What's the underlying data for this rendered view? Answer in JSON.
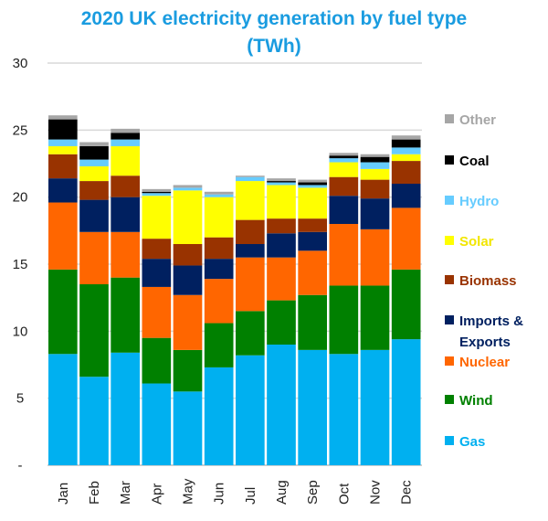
{
  "chart_data": {
    "type": "bar",
    "stacked": true,
    "title": "2020 UK electricity generation by fuel type",
    "title_line2": "(TWh)",
    "categories": [
      "Jan",
      "Feb",
      "Mar",
      "Apr",
      "May",
      "Jun",
      "Jul",
      "Aug",
      "Sep",
      "Oct",
      "Nov",
      "Dec"
    ],
    "ylim": [
      0,
      30
    ],
    "yticks": [
      "-",
      "5",
      "10",
      "15",
      "20",
      "25",
      "30"
    ],
    "grid": true,
    "legend_position": "right",
    "series": [
      {
        "name": "Gas",
        "color": "#00b0f0",
        "values": [
          8.3,
          6.6,
          8.4,
          6.1,
          5.5,
          7.3,
          8.2,
          9.0,
          8.6,
          8.3,
          8.6,
          9.4
        ]
      },
      {
        "name": "Wind",
        "color": "#008000",
        "values": [
          6.3,
          6.9,
          5.6,
          3.4,
          3.1,
          3.3,
          3.3,
          3.3,
          4.1,
          5.1,
          4.8,
          5.2
        ]
      },
      {
        "name": "Nuclear",
        "color": "#ff6600",
        "values": [
          5.0,
          3.9,
          3.4,
          3.8,
          4.1,
          3.3,
          4.0,
          3.2,
          3.3,
          4.6,
          4.2,
          4.6
        ]
      },
      {
        "name": "Imports & Exports",
        "color": "#002060",
        "values": [
          1.8,
          2.4,
          2.6,
          2.1,
          2.2,
          1.5,
          1.0,
          1.8,
          1.4,
          2.1,
          2.3,
          1.8
        ]
      },
      {
        "name": "Biomass",
        "color": "#993300",
        "values": [
          1.8,
          1.4,
          1.6,
          1.5,
          1.6,
          1.6,
          1.8,
          1.1,
          1.0,
          1.4,
          1.4,
          1.7
        ]
      },
      {
        "name": "Solar",
        "color": "#ffff00",
        "values": [
          0.6,
          1.1,
          2.2,
          3.2,
          4.0,
          3.0,
          2.9,
          2.5,
          2.3,
          1.1,
          0.8,
          0.5
        ]
      },
      {
        "name": "Hydro",
        "color": "#66ccff",
        "values": [
          0.5,
          0.5,
          0.5,
          0.2,
          0.2,
          0.2,
          0.3,
          0.2,
          0.2,
          0.3,
          0.5,
          0.5
        ]
      },
      {
        "name": "Coal",
        "color": "#000000",
        "values": [
          1.5,
          1.0,
          0.5,
          0.1,
          0.0,
          0.0,
          0.0,
          0.1,
          0.2,
          0.2,
          0.4,
          0.6
        ]
      },
      {
        "name": "Other",
        "color": "#a6a6a6",
        "values": [
          0.3,
          0.3,
          0.3,
          0.2,
          0.2,
          0.2,
          0.1,
          0.2,
          0.2,
          0.2,
          0.2,
          0.3
        ]
      }
    ],
    "legend_order": [
      "Other",
      "Coal",
      "Hydro",
      "Solar",
      "Biomass",
      "Imports & Exports",
      "Nuclear",
      "Wind",
      "Gas"
    ]
  }
}
